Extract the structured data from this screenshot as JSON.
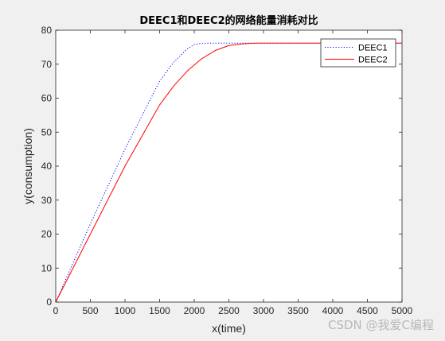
{
  "chart_data": {
    "type": "line",
    "title": "DEEC1和DEEC2的网络能量消耗对比",
    "xlabel": "x(time)",
    "ylabel": "y(consumption)",
    "xlim": [
      0,
      5000
    ],
    "ylim": [
      0,
      80
    ],
    "xticks": [
      0,
      500,
      1000,
      1500,
      2000,
      2500,
      3000,
      3500,
      4000,
      4500,
      5000
    ],
    "yticks": [
      0,
      10,
      20,
      30,
      40,
      50,
      60,
      70,
      80
    ],
    "grid": false,
    "legend_position": "top-right",
    "series": [
      {
        "name": "DEEC1",
        "color": "#0000ff",
        "style": "dotted",
        "x": [
          0,
          500,
          1000,
          1500,
          1700,
          1900,
          2000,
          2100,
          2200,
          2400,
          2600,
          3000,
          4000,
          5000
        ],
        "y": [
          0,
          23,
          45,
          65,
          70.5,
          74.5,
          75.8,
          76.1,
          76.2,
          76.2,
          76.2,
          76.2,
          76.2,
          76.2
        ]
      },
      {
        "name": "DEEC2",
        "color": "#ff0000",
        "style": "solid",
        "x": [
          0,
          500,
          1000,
          1500,
          1700,
          1900,
          2100,
          2300,
          2500,
          2700,
          2900,
          3000,
          4000,
          5000
        ],
        "y": [
          0,
          20,
          40,
          58,
          63.5,
          68,
          71.5,
          74,
          75.5,
          76,
          76.2,
          76.2,
          76.2,
          76.2
        ]
      }
    ]
  },
  "watermark": "CSDN @我爱C编程"
}
